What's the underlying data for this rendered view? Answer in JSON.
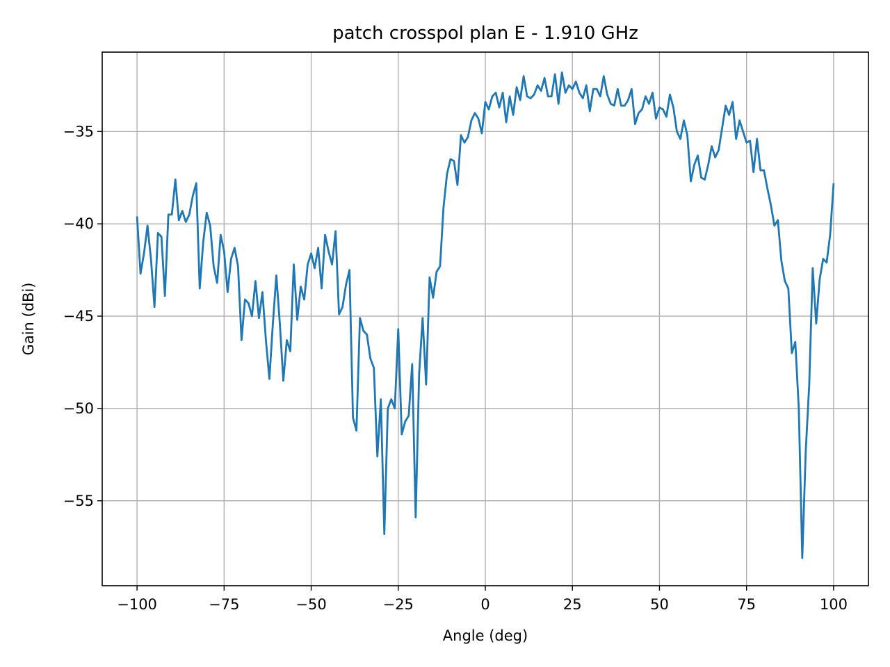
{
  "chart_data": {
    "type": "line",
    "title": "patch crosspol plan E - 1.910 GHz",
    "xlabel": "Angle (deg)",
    "ylabel": "Gain (dBi)",
    "xlim": [
      -110,
      110
    ],
    "ylim": [
      -59.6,
      -30.7
    ],
    "xticks": [
      -100,
      -75,
      -50,
      -25,
      0,
      25,
      50,
      75,
      100
    ],
    "xtick_labels": [
      "−100",
      "−75",
      "−50",
      "−25",
      "0",
      "25",
      "50",
      "75",
      "100"
    ],
    "yticks": [
      -35,
      -40,
      -45,
      -50,
      -55
    ],
    "ytick_labels": [
      "−35",
      "−40",
      "−45",
      "−50",
      "−55"
    ],
    "grid": true,
    "legend": false,
    "series_color": "#1f77b4",
    "series": [
      {
        "x": [
          -100,
          -99,
          -98,
          -97,
          -96,
          -95,
          -94,
          -93,
          -92,
          -91,
          -90,
          -89,
          -88,
          -87,
          -86,
          -85,
          -84,
          -83,
          -82,
          -81,
          -80,
          -79,
          -78,
          -77,
          -76,
          -75,
          -74,
          -73,
          -72,
          -71,
          -70,
          -69,
          -68,
          -67,
          -66,
          -65,
          -64,
          -63,
          -62,
          -61,
          -60,
          -59,
          -58,
          -57,
          -56,
          -55,
          -54,
          -53,
          -52,
          -51,
          -50,
          -49,
          -48,
          -47,
          -46,
          -45,
          -44,
          -43,
          -42,
          -41,
          -40,
          -39,
          -38,
          -37,
          -36,
          -35,
          -34,
          -33,
          -32,
          -31,
          -30,
          -29,
          -28,
          -27,
          -26,
          -25,
          -24,
          -23,
          -22,
          -21,
          -20,
          -19,
          -18,
          -17,
          -16,
          -15,
          -14,
          -13,
          -12,
          -11,
          -10,
          -9,
          -8,
          -7,
          -6,
          -5,
          -4,
          -3,
          -2,
          -1,
          0,
          1,
          2,
          3,
          4,
          5,
          6,
          7,
          8,
          9,
          10,
          11,
          12,
          13,
          14,
          15,
          16,
          17,
          18,
          19,
          20,
          21,
          22,
          23,
          24,
          25,
          26,
          27,
          28,
          29,
          30,
          31,
          32,
          33,
          34,
          35,
          36,
          37,
          38,
          39,
          40,
          41,
          42,
          43,
          44,
          45,
          46,
          47,
          48,
          49,
          50,
          51,
          52,
          53,
          54,
          55,
          56,
          57,
          58,
          59,
          60,
          61,
          62,
          63,
          64,
          65,
          66,
          67,
          68,
          69,
          70,
          71,
          72,
          73,
          74,
          75,
          76,
          77,
          78,
          79,
          80,
          81,
          82,
          83,
          84,
          85,
          86,
          87,
          88,
          89,
          90,
          91,
          92,
          93,
          94,
          95,
          96,
          97,
          98,
          99,
          100
        ],
        "y": [
          -39.6,
          -42.7,
          -41.6,
          -40.1,
          -41.9,
          -44.5,
          -40.5,
          -40.7,
          -43.9,
          -39.5,
          -39.5,
          -37.6,
          -39.8,
          -39.3,
          -39.9,
          -39.5,
          -38.5,
          -37.8,
          -43.5,
          -41.0,
          -39.4,
          -40.1,
          -42.3,
          -43.2,
          -40.6,
          -41.5,
          -43.7,
          -41.9,
          -41.3,
          -42.3,
          -46.3,
          -44.1,
          -44.3,
          -45.0,
          -43.1,
          -45.1,
          -43.7,
          -46.3,
          -48.4,
          -45.4,
          -42.8,
          -45.4,
          -48.5,
          -46.3,
          -46.9,
          -42.2,
          -45.2,
          -43.4,
          -44.1,
          -42.2,
          -41.6,
          -42.4,
          -41.3,
          -43.5,
          -40.6,
          -41.5,
          -42.2,
          -40.4,
          -44.9,
          -44.5,
          -43.3,
          -42.5,
          -50.5,
          -51.2,
          -45.1,
          -45.8,
          -46.0,
          -47.3,
          -47.8,
          -52.6,
          -49.5,
          -56.8,
          -50.0,
          -49.5,
          -50.0,
          -45.7,
          -51.4,
          -50.7,
          -50.4,
          -47.6,
          -55.9,
          -48.1,
          -45.1,
          -48.7,
          -42.9,
          -44.0,
          -42.6,
          -42.3,
          -39.1,
          -37.3,
          -36.5,
          -36.6,
          -37.9,
          -35.2,
          -35.6,
          -35.3,
          -34.4,
          -34.0,
          -34.3,
          -35.1,
          -33.4,
          -33.8,
          -33.1,
          -32.9,
          -33.7,
          -32.9,
          -34.5,
          -33.1,
          -34.1,
          -32.6,
          -33.3,
          -32.0,
          -33.1,
          -33.2,
          -33.0,
          -32.5,
          -32.8,
          -32.1,
          -33.1,
          -33.1,
          -31.9,
          -33.5,
          -31.8,
          -32.9,
          -32.5,
          -32.7,
          -32.3,
          -32.9,
          -33.2,
          -32.5,
          -33.9,
          -32.7,
          -32.7,
          -33.1,
          -32.0,
          -33.0,
          -33.5,
          -33.6,
          -32.7,
          -33.6,
          -33.6,
          -33.3,
          -32.7,
          -34.6,
          -34.0,
          -33.8,
          -33.1,
          -33.5,
          -32.9,
          -34.3,
          -33.7,
          -33.8,
          -34.2,
          -33.0,
          -33.7,
          -35.0,
          -35.4,
          -34.4,
          -35.2,
          -37.7,
          -36.8,
          -36.3,
          -37.5,
          -37.6,
          -36.8,
          -35.8,
          -36.4,
          -36.0,
          -34.8,
          -33.6,
          -34.1,
          -33.4,
          -35.4,
          -34.4,
          -35.0,
          -35.6,
          -35.5,
          -37.2,
          -35.4,
          -37.1,
          -37.1,
          -38.1,
          -39.0,
          -40.1,
          -39.8,
          -42.0,
          -43.1,
          -43.5,
          -47.0,
          -46.4,
          -50.0,
          -58.1,
          -52.3,
          -48.7,
          -42.4,
          -45.4,
          -43.0,
          -41.9,
          -42.1,
          -40.6,
          -37.8
        ]
      }
    ]
  }
}
